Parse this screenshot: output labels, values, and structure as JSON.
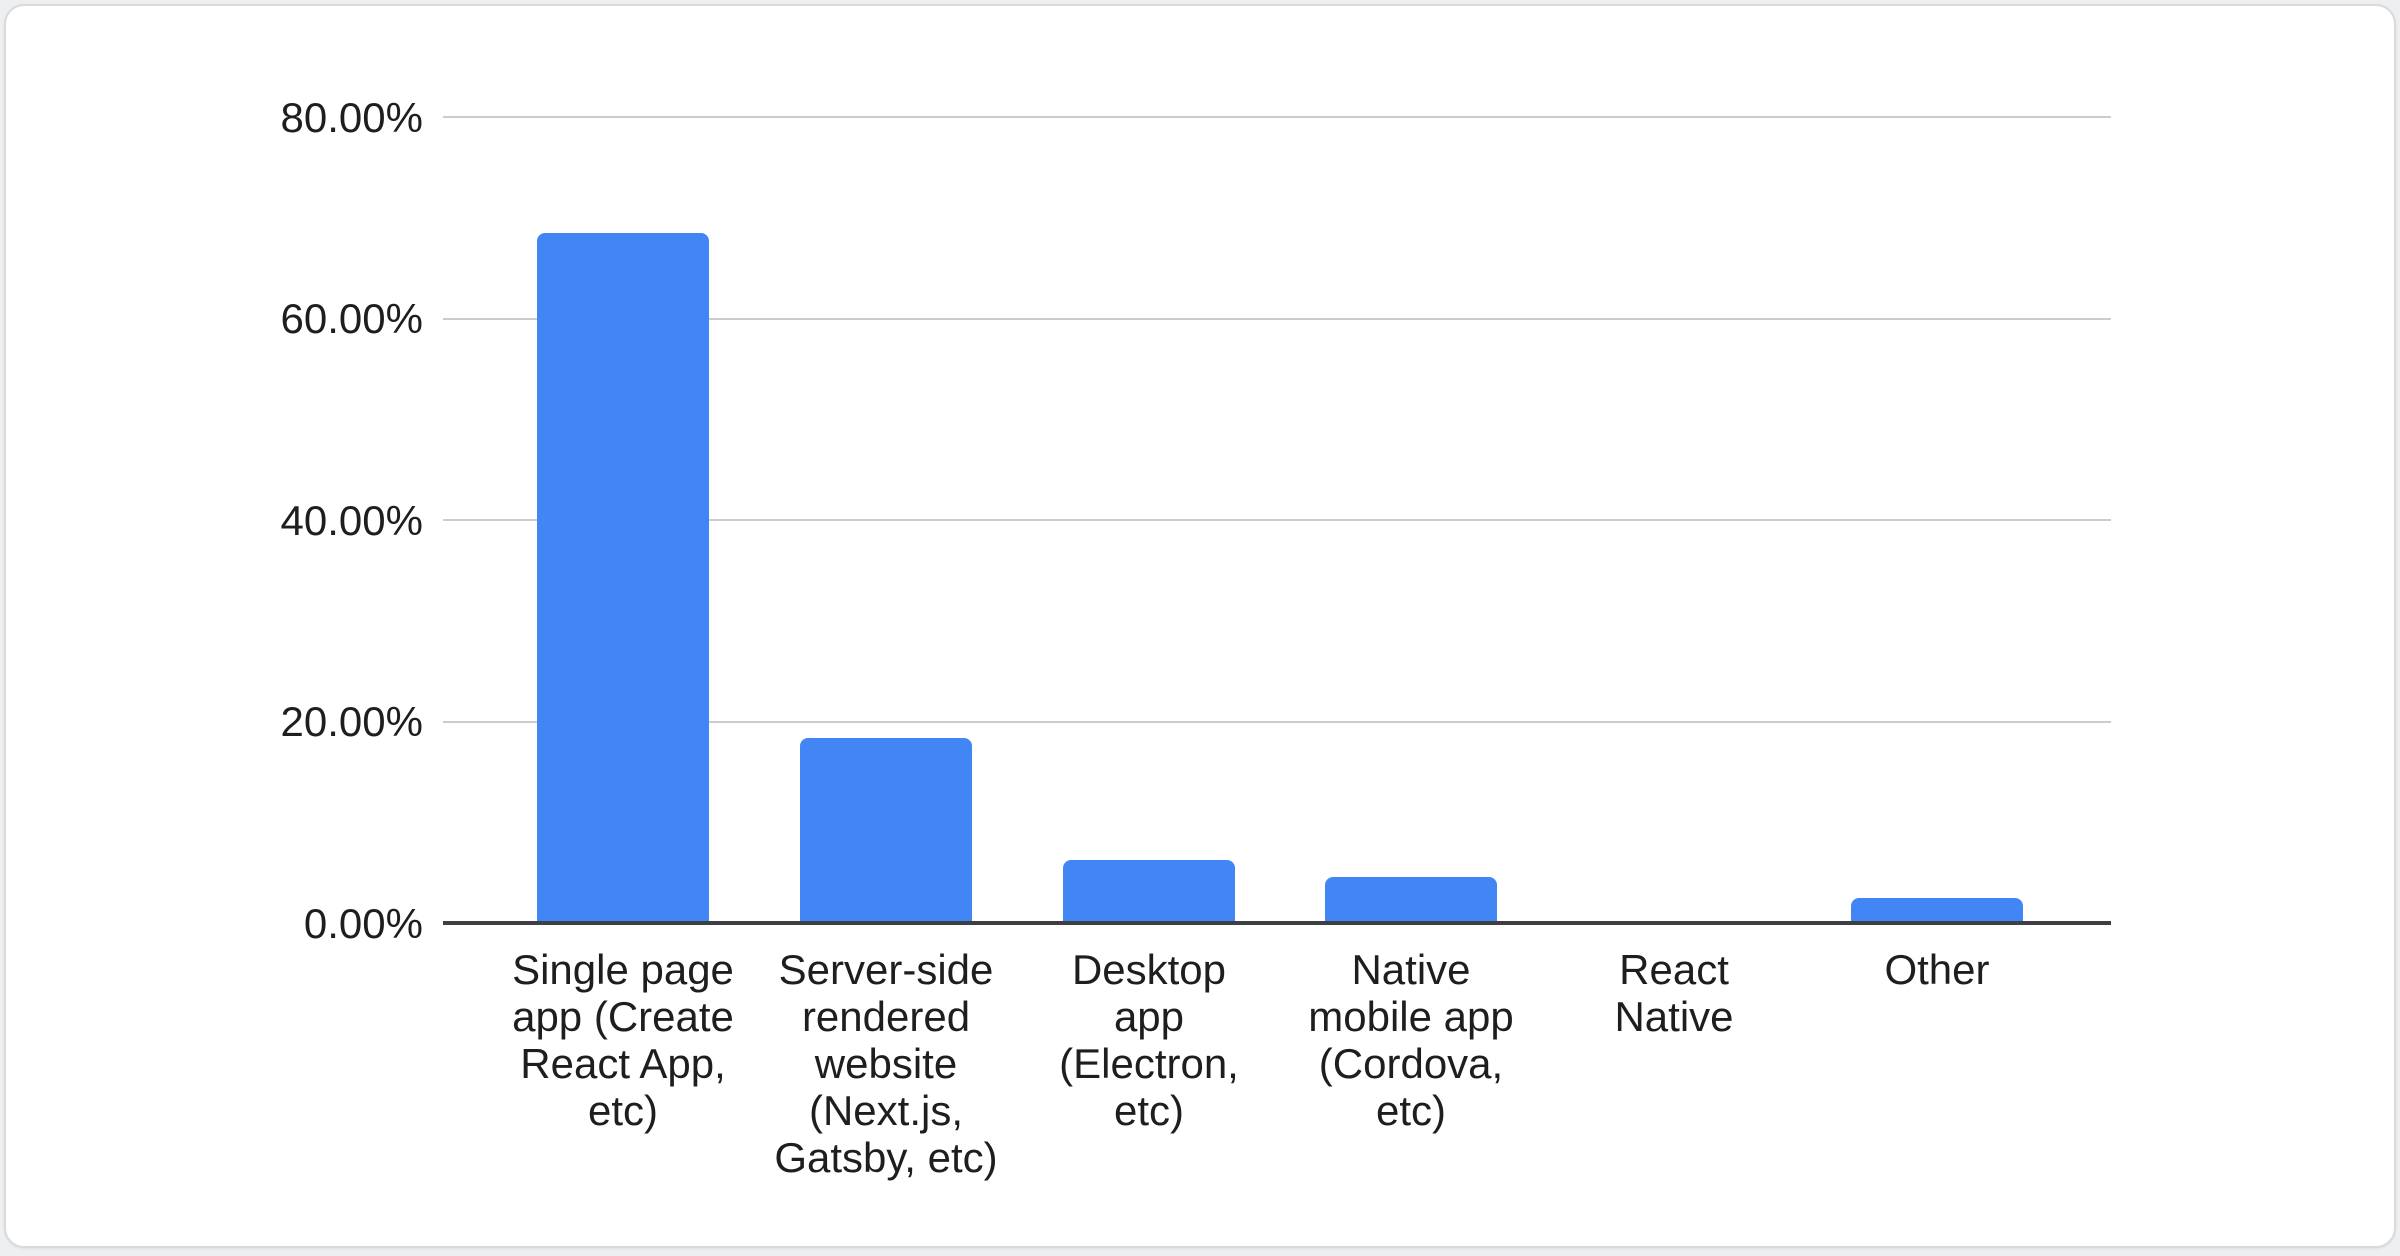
{
  "chart_data": {
    "type": "bar",
    "title": "",
    "xlabel": "",
    "ylabel": "",
    "categories": [
      "Single page app (Create React App, etc)",
      "Server-side rendered website (Next.js, Gatsby, etc)",
      "Desktop app (Electron, etc)",
      "Native mobile app (Cordova, etc)",
      "React Native",
      "Other"
    ],
    "category_label_lines": [
      [
        "Single page",
        "app (Create",
        "React App,",
        "etc)"
      ],
      [
        "Server-side",
        "rendered",
        "website",
        "(Next.js,",
        "Gatsby, etc)"
      ],
      [
        "Desktop",
        "app",
        "(Electron,",
        "etc)"
      ],
      [
        "Native",
        "mobile app",
        "(Cordova,",
        "etc)"
      ],
      [
        "React",
        "Native"
      ],
      [
        "Other"
      ]
    ],
    "values": [
      68.5,
      18.4,
      6.3,
      4.6,
      0,
      2.5
    ],
    "ylim": [
      0,
      80
    ],
    "yticks": [
      {
        "value": 0,
        "label": "0.00%"
      },
      {
        "value": 20,
        "label": "20.00%"
      },
      {
        "value": 40,
        "label": "40.00%"
      },
      {
        "value": 60,
        "label": "60.00%"
      },
      {
        "value": 80,
        "label": "80.00%"
      }
    ],
    "grid": true,
    "legend": "none",
    "bar_color": "#4285f4"
  },
  "colors": {
    "bar": "#4285f4",
    "gridline": "#cccccc",
    "axis_line": "#3d3f42",
    "text": "#1e1e1e",
    "card_background": "#ffffff",
    "card_border": "#d8dade",
    "page_background": "#edeff1"
  }
}
